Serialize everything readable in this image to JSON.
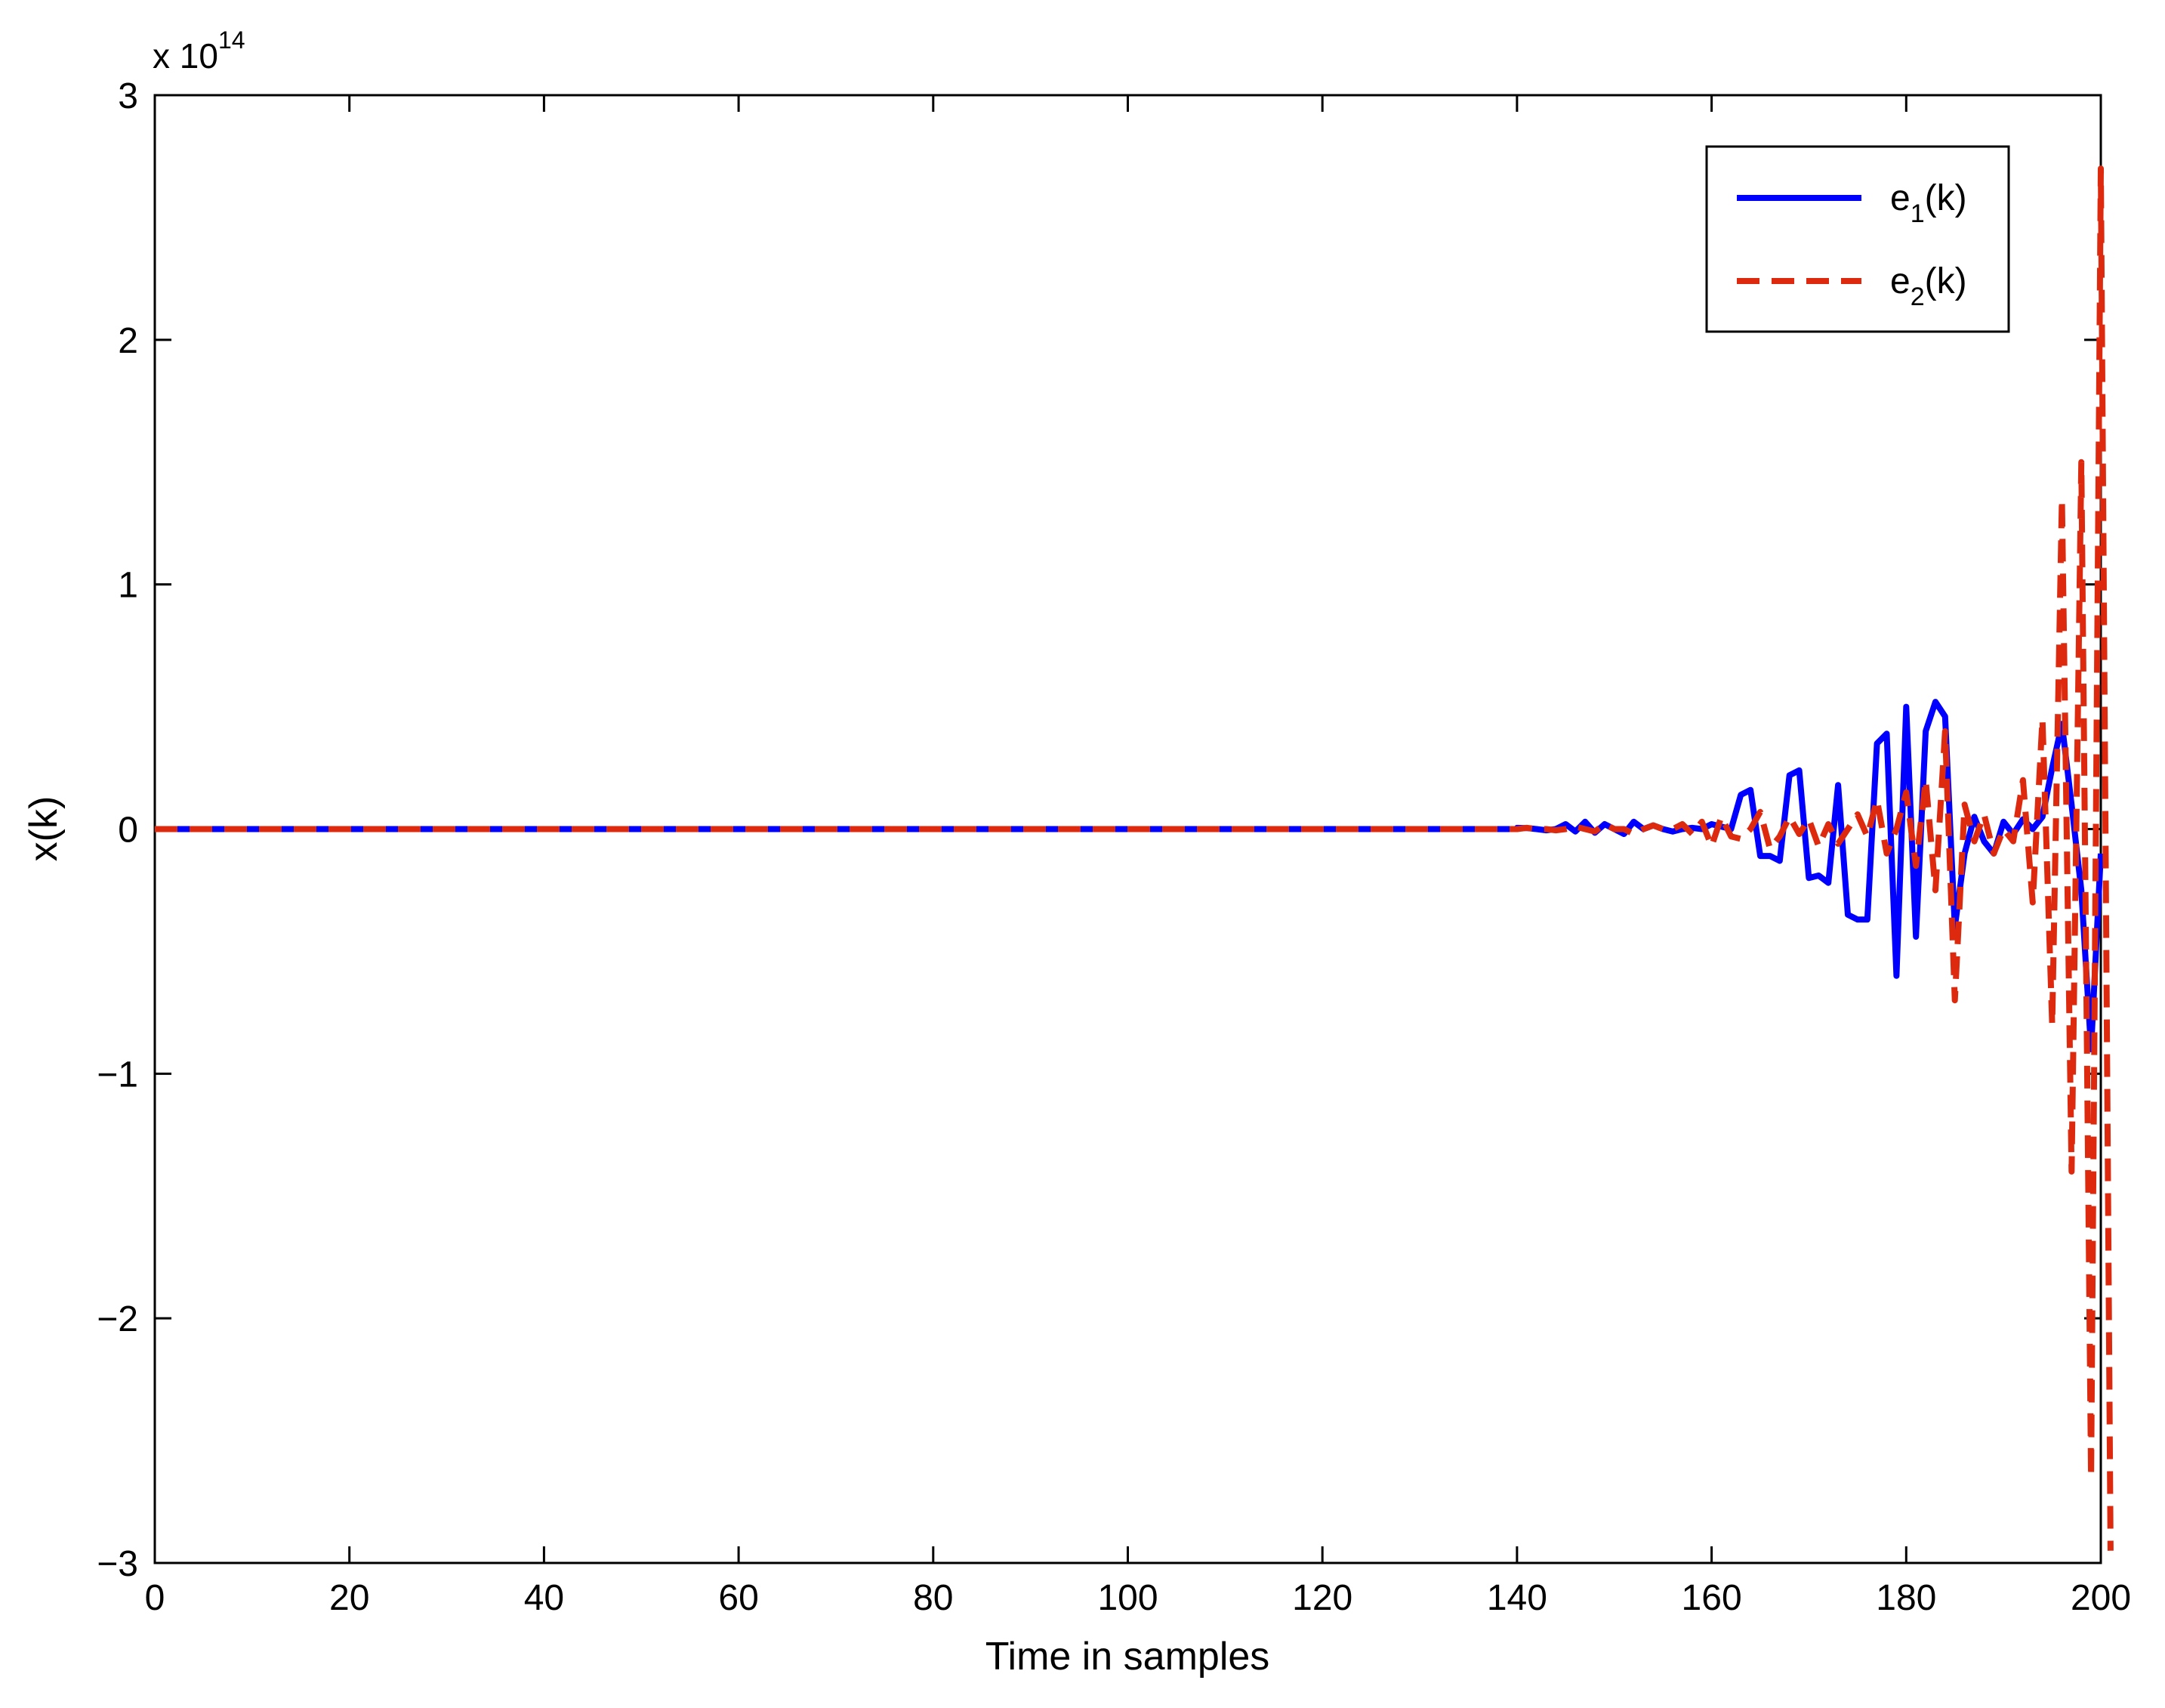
{
  "chart_data": {
    "type": "line",
    "xlabel": "Time in samples",
    "ylabel": "x(k)",
    "y_multiplier": {
      "base": "x 10",
      "exponent": "14"
    },
    "xlim": [
      0,
      200
    ],
    "ylim": [
      -3,
      3
    ],
    "x_ticks": [
      0,
      20,
      40,
      60,
      80,
      100,
      120,
      140,
      160,
      180,
      200
    ],
    "y_ticks": [
      -3,
      -2,
      -1,
      0,
      1,
      2,
      3
    ],
    "y_tick_labels": [
      "−3",
      "−2",
      "−1",
      "0",
      "1",
      "2",
      "3"
    ],
    "grid": false,
    "legend_position": "top-right",
    "series": [
      {
        "name": "e1(k)",
        "legend_main": "e",
        "legend_sub": "1",
        "legend_tail": "(k)",
        "color": "#0000ff",
        "style": "solid",
        "x_start": 140,
        "values": [
          0.005,
          0.004,
          0.0,
          -0.005,
          0.0,
          0.02,
          -0.01,
          0.03,
          -0.015,
          0.02,
          0.0,
          -0.02,
          0.03,
          0.0,
          0.015,
          0.0,
          -0.01,
          0.0,
          0.005,
          0.0,
          0.02,
          0.01,
          0.0,
          0.14,
          0.16,
          -0.11,
          -0.11,
          -0.13,
          0.22,
          0.24,
          -0.2,
          -0.19,
          -0.22,
          0.18,
          -0.35,
          -0.37,
          -0.37,
          0.35,
          0.39,
          -0.6,
          0.5,
          -0.44,
          0.4,
          0.52,
          0.46,
          -0.4,
          -0.1,
          0.05,
          -0.05,
          -0.1,
          0.03,
          -0.02,
          0.04,
          0.0,
          0.05,
          0.25,
          0.43,
          0.1,
          -0.25,
          -0.9,
          -0.1
        ]
      },
      {
        "name": "e2(k)",
        "legend_main": "e",
        "legend_sub": "2",
        "legend_tail": "(k)",
        "color": "#dd2a0f",
        "style": "dashed",
        "x_start": 140,
        "values": [
          0.0,
          0.005,
          0.0,
          0.0,
          -0.005,
          0.0,
          0.01,
          0.0,
          -0.01,
          0.02,
          0.0,
          0.0,
          -0.02,
          0.0,
          0.015,
          0.0,
          0.0,
          0.02,
          -0.02,
          0.03,
          -0.07,
          0.05,
          -0.03,
          -0.04,
          0.0,
          0.07,
          -0.08,
          -0.03,
          0.05,
          -0.02,
          0.04,
          -0.07,
          0.02,
          -0.06,
          0.0,
          0.06,
          -0.03,
          0.12,
          -0.1,
          0.0,
          0.15,
          -0.15,
          0.2,
          -0.25,
          0.4,
          -0.7,
          0.1,
          -0.05,
          0.06,
          -0.1,
          0.0,
          -0.05,
          0.2,
          -0.3,
          0.45,
          -0.8,
          1.35,
          -1.4,
          1.5,
          -2.65,
          2.7,
          -2.95
        ]
      }
    ]
  }
}
